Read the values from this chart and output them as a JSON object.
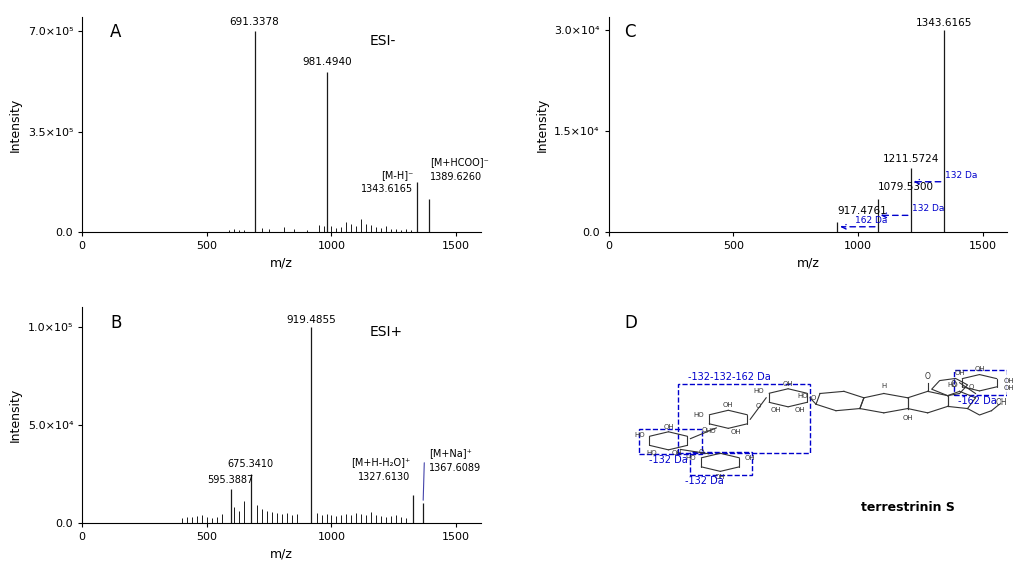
{
  "panel_A": {
    "label": "A",
    "mode": "ESI-",
    "major_peaks": [
      {
        "mz": 691.3378,
        "intensity": 700000
      },
      {
        "mz": 981.494,
        "intensity": 560000
      },
      {
        "mz": 1343.6165,
        "intensity": 175000
      },
      {
        "mz": 1389.626,
        "intensity": 115000
      }
    ],
    "minor_peaks": [
      {
        "mz": 590,
        "intensity": 8000
      },
      {
        "mz": 610,
        "intensity": 10000
      },
      {
        "mz": 630,
        "intensity": 7000
      },
      {
        "mz": 650,
        "intensity": 9000
      },
      {
        "mz": 720,
        "intensity": 14000
      },
      {
        "mz": 750,
        "intensity": 11000
      },
      {
        "mz": 810,
        "intensity": 18000
      },
      {
        "mz": 850,
        "intensity": 10000
      },
      {
        "mz": 900,
        "intensity": 9000
      },
      {
        "mz": 950,
        "intensity": 25000
      },
      {
        "mz": 970,
        "intensity": 20000
      },
      {
        "mz": 1000,
        "intensity": 22000
      },
      {
        "mz": 1020,
        "intensity": 15000
      },
      {
        "mz": 1040,
        "intensity": 18000
      },
      {
        "mz": 1060,
        "intensity": 35000
      },
      {
        "mz": 1080,
        "intensity": 28000
      },
      {
        "mz": 1100,
        "intensity": 22000
      },
      {
        "mz": 1120,
        "intensity": 45000
      },
      {
        "mz": 1140,
        "intensity": 30000
      },
      {
        "mz": 1160,
        "intensity": 25000
      },
      {
        "mz": 1180,
        "intensity": 18000
      },
      {
        "mz": 1200,
        "intensity": 15000
      },
      {
        "mz": 1220,
        "intensity": 20000
      },
      {
        "mz": 1240,
        "intensity": 12000
      },
      {
        "mz": 1260,
        "intensity": 10000
      },
      {
        "mz": 1280,
        "intensity": 8000
      },
      {
        "mz": 1300,
        "intensity": 10000
      },
      {
        "mz": 1320,
        "intensity": 9000
      }
    ],
    "ylim": [
      0,
      750000
    ],
    "yticks": [
      0.0,
      350000.0,
      700000.0
    ],
    "ytick_labels": [
      "0.0",
      "3.5×10⁵",
      "7.0×10⁵"
    ],
    "xlim": [
      0,
      1600
    ],
    "xticks": [
      0,
      500,
      1000,
      1500
    ]
  },
  "panel_B": {
    "label": "B",
    "mode": "ESI+",
    "major_peaks": [
      {
        "mz": 595.3887,
        "intensity": 17000
      },
      {
        "mz": 675.341,
        "intensity": 25000
      },
      {
        "mz": 919.4855,
        "intensity": 100000
      },
      {
        "mz": 1327.613,
        "intensity": 14000
      },
      {
        "mz": 1367.6089,
        "intensity": 10000
      }
    ],
    "minor_peaks": [
      {
        "mz": 400,
        "intensity": 2500
      },
      {
        "mz": 420,
        "intensity": 3000
      },
      {
        "mz": 440,
        "intensity": 2800
      },
      {
        "mz": 460,
        "intensity": 3500
      },
      {
        "mz": 480,
        "intensity": 4000
      },
      {
        "mz": 500,
        "intensity": 3000
      },
      {
        "mz": 520,
        "intensity": 2500
      },
      {
        "mz": 540,
        "intensity": 3000
      },
      {
        "mz": 560,
        "intensity": 4500
      },
      {
        "mz": 610,
        "intensity": 8000
      },
      {
        "mz": 630,
        "intensity": 6000
      },
      {
        "mz": 650,
        "intensity": 11000
      },
      {
        "mz": 700,
        "intensity": 9000
      },
      {
        "mz": 720,
        "intensity": 7000
      },
      {
        "mz": 740,
        "intensity": 6000
      },
      {
        "mz": 760,
        "intensity": 5500
      },
      {
        "mz": 780,
        "intensity": 5000
      },
      {
        "mz": 800,
        "intensity": 4500
      },
      {
        "mz": 820,
        "intensity": 5000
      },
      {
        "mz": 840,
        "intensity": 4000
      },
      {
        "mz": 860,
        "intensity": 4500
      },
      {
        "mz": 940,
        "intensity": 5000
      },
      {
        "mz": 960,
        "intensity": 4000
      },
      {
        "mz": 980,
        "intensity": 4500
      },
      {
        "mz": 1000,
        "intensity": 4000
      },
      {
        "mz": 1020,
        "intensity": 3500
      },
      {
        "mz": 1040,
        "intensity": 4000
      },
      {
        "mz": 1060,
        "intensity": 4500
      },
      {
        "mz": 1080,
        "intensity": 4000
      },
      {
        "mz": 1100,
        "intensity": 5000
      },
      {
        "mz": 1120,
        "intensity": 4500
      },
      {
        "mz": 1140,
        "intensity": 3800
      },
      {
        "mz": 1160,
        "intensity": 5500
      },
      {
        "mz": 1180,
        "intensity": 4000
      },
      {
        "mz": 1200,
        "intensity": 3500
      },
      {
        "mz": 1220,
        "intensity": 3000
      },
      {
        "mz": 1240,
        "intensity": 3500
      },
      {
        "mz": 1260,
        "intensity": 4000
      },
      {
        "mz": 1280,
        "intensity": 3000
      },
      {
        "mz": 1300,
        "intensity": 2500
      }
    ],
    "ylim": [
      0,
      110000
    ],
    "yticks": [
      0.0,
      50000.0,
      100000.0
    ],
    "ytick_labels": [
      "0.0",
      "5.0×10⁴",
      "1.0×10⁵"
    ],
    "xlim": [
      0,
      1600
    ],
    "xticks": [
      0,
      500,
      1000,
      1500
    ]
  },
  "panel_C": {
    "label": "C",
    "peaks": [
      {
        "mz": 917.4761,
        "intensity": 1500
      },
      {
        "mz": 1079.53,
        "intensity": 5000
      },
      {
        "mz": 1211.5724,
        "intensity": 9500
      },
      {
        "mz": 1343.6165,
        "intensity": 30000
      }
    ],
    "ylim": [
      0,
      32000
    ],
    "yticks": [
      0.0,
      15000.0,
      30000.0
    ],
    "ytick_labels": [
      "0.0",
      "1.5×10⁴",
      "3.0×10⁴"
    ],
    "xlim": [
      0,
      1600
    ],
    "xticks": [
      0,
      500,
      1000,
      1500
    ]
  },
  "common": {
    "xlabel": "m/z",
    "ylabel": "Intensity",
    "peak_color": "#1a1a1a",
    "arrow_color": "#0000cc",
    "label_fontsize": 7.5,
    "axis_fontsize": 9,
    "tick_fontsize": 8
  }
}
